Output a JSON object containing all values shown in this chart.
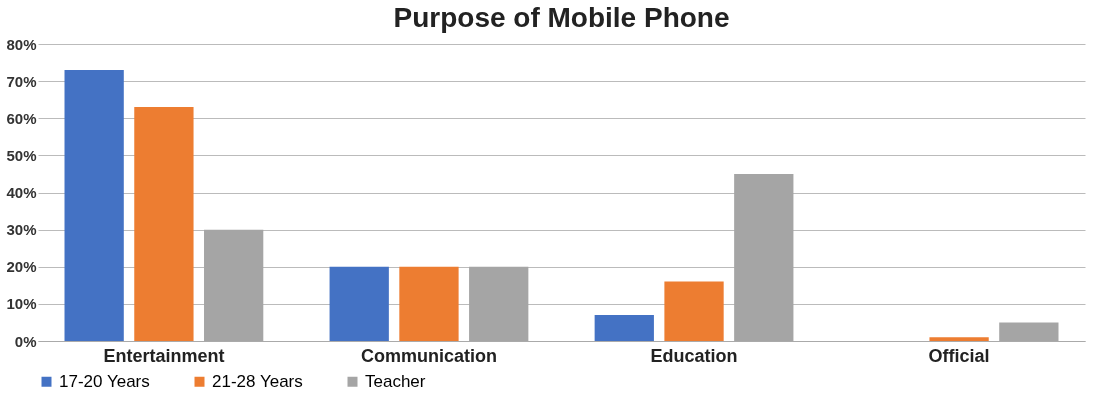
{
  "chart_data": {
    "type": "bar",
    "title": "Purpose of Mobile Phone",
    "categories": [
      "Entertainment",
      "Communication",
      "Education",
      "Official"
    ],
    "series": [
      {
        "name": "17-20 Years",
        "color": "#4472c4",
        "values": [
          73,
          20,
          7,
          null
        ]
      },
      {
        "name": "21-28 Years",
        "color": "#ed7d31",
        "values": [
          63,
          20,
          16,
          1
        ]
      },
      {
        "name": "Teacher",
        "color": "#a5a5a5",
        "values": [
          30,
          20,
          45,
          5
        ]
      }
    ],
    "ylim": [
      0,
      80
    ],
    "yticks": [
      {
        "value": 0,
        "label": "0%"
      },
      {
        "value": 10,
        "label": "10%"
      },
      {
        "value": 20,
        "label": "20%"
      },
      {
        "value": 30,
        "label": "30%"
      },
      {
        "value": 40,
        "label": "40%"
      },
      {
        "value": 50,
        "label": "50%"
      },
      {
        "value": 60,
        "label": "60%"
      },
      {
        "value": 70,
        "label": "70%"
      },
      {
        "value": 80,
        "label": "80%"
      }
    ],
    "grid": "y",
    "legend": "bottom"
  }
}
